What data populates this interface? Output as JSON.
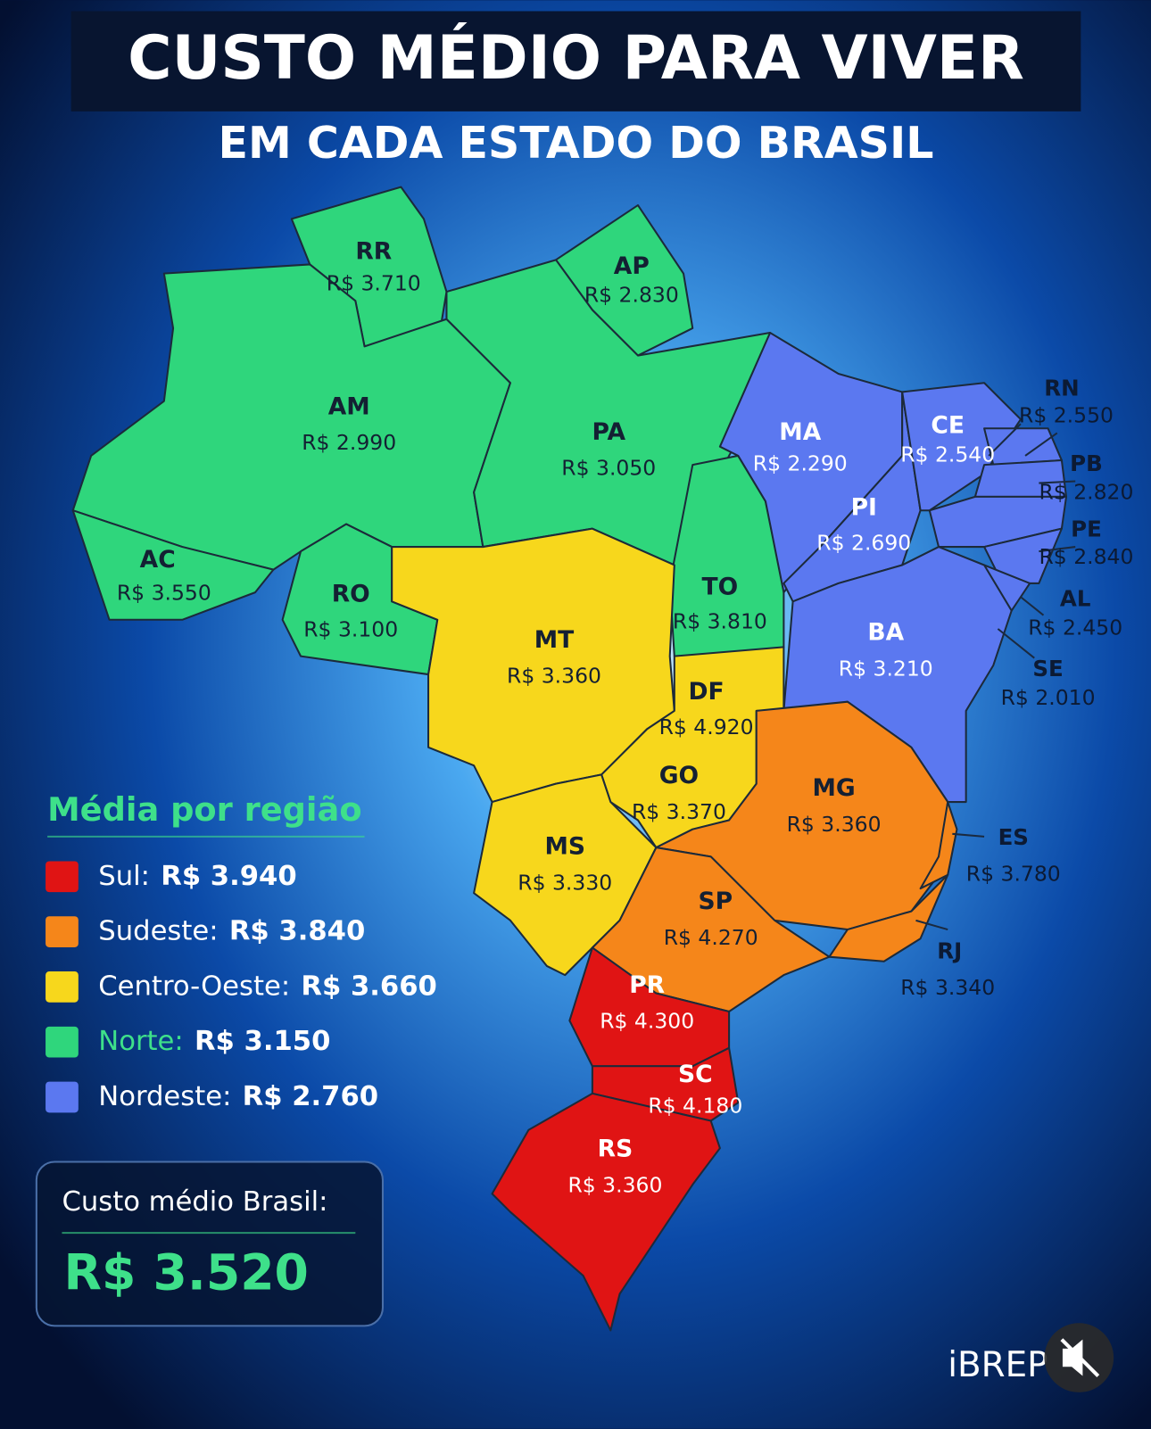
{
  "title": "CUSTO MÉDIO PARA VIVER",
  "subtitle": "EM CADA ESTADO DO BRASIL",
  "states": [
    {
      "code": "RR",
      "value": "R$ 3.710"
    },
    {
      "code": "AP",
      "value": "R$ 2.830"
    },
    {
      "code": "AM",
      "value": "R$ 2.990"
    },
    {
      "code": "PA",
      "value": "R$ 3.050"
    },
    {
      "code": "MA",
      "value": "R$ 2.290"
    },
    {
      "code": "CE",
      "value": "R$ 2.540"
    },
    {
      "code": "RN",
      "value": "R$ 2.550"
    },
    {
      "code": "PB",
      "value": "R$ 2.820"
    },
    {
      "code": "PE",
      "value": "R$ 2.840"
    },
    {
      "code": "AL",
      "value": "R$ 2.450"
    },
    {
      "code": "SE",
      "value": "R$ 2.010"
    },
    {
      "code": "PI",
      "value": "R$ 2.690"
    },
    {
      "code": "AC",
      "value": "R$ 3.550"
    },
    {
      "code": "RO",
      "value": "R$ 3.100"
    },
    {
      "code": "TO",
      "value": "R$ 3.810"
    },
    {
      "code": "MT",
      "value": "R$ 3.360"
    },
    {
      "code": "BA",
      "value": "R$ 3.210"
    },
    {
      "code": "DF",
      "value": "R$ 4.920"
    },
    {
      "code": "GO",
      "value": "R$ 3.370"
    },
    {
      "code": "MG",
      "value": "R$ 3.360"
    },
    {
      "code": "ES",
      "value": "R$ 3.780"
    },
    {
      "code": "MS",
      "value": "R$ 3.330"
    },
    {
      "code": "SP",
      "value": "R$ 4.270"
    },
    {
      "code": "RJ",
      "value": "R$ 3.340"
    },
    {
      "code": "PR",
      "value": "R$ 4.300"
    },
    {
      "code": "SC",
      "value": "R$ 4.180"
    },
    {
      "code": "RS",
      "value": "R$ 3.360"
    }
  ],
  "legend": {
    "title": "Média por região",
    "items": [
      {
        "region": "Sul:",
        "value": "R$ 3.940",
        "color": "#e01414"
      },
      {
        "region": "Sudeste:",
        "value": "R$ 3.840",
        "color": "#f5861a"
      },
      {
        "region": "Centro-Oeste:",
        "value": "R$ 3.660",
        "color": "#f7d71c"
      },
      {
        "region": "Norte:",
        "value": "R$ 3.150",
        "color": "#2fd67c"
      },
      {
        "region": "Nordeste:",
        "value": "R$ 2.760",
        "color": "#5b78f0"
      }
    ]
  },
  "brazil": {
    "label": "Custo médio Brasil:",
    "value": "R$ 3.520"
  },
  "source": "iBREP"
}
